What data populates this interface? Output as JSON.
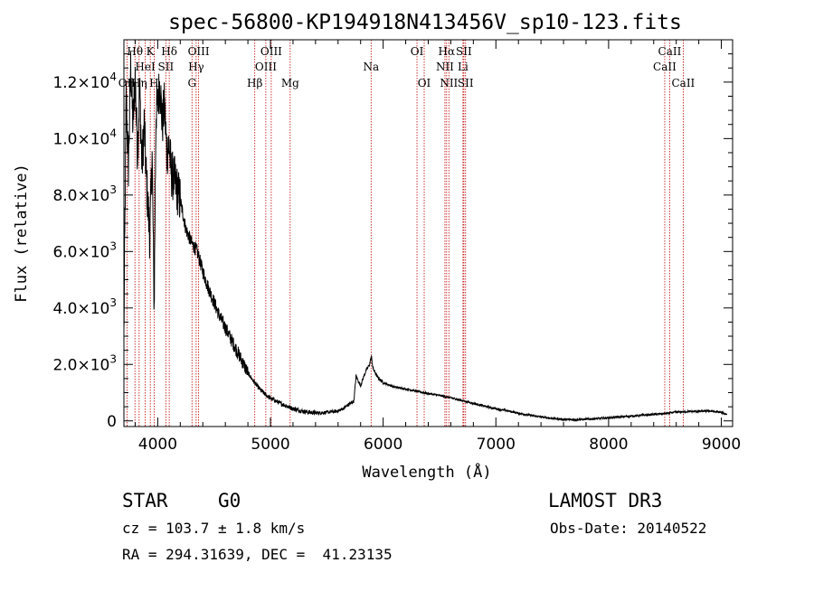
{
  "chart_data": {
    "type": "line",
    "title": "spec-56800-KP194918N413456V_sp10-123.fits",
    "xlabel": "Wavelength (Å)",
    "ylabel": "Flux (relative)",
    "xlim": [
      3700,
      9100
    ],
    "ylim": [
      -200,
      13500
    ],
    "x_ticks": [
      {
        "value": 4000,
        "label": "4000"
      },
      {
        "value": 5000,
        "label": "5000"
      },
      {
        "value": 6000,
        "label": "6000"
      },
      {
        "value": 7000,
        "label": "7000"
      },
      {
        "value": 8000,
        "label": "8000"
      },
      {
        "value": 9000,
        "label": "9000"
      }
    ],
    "y_ticks": [
      {
        "value": 0,
        "mantissa": "0",
        "exponent": ""
      },
      {
        "value": 2000,
        "mantissa": "2.0×10",
        "exponent": "3"
      },
      {
        "value": 4000,
        "mantissa": "4.0×10",
        "exponent": "3"
      },
      {
        "value": 6000,
        "mantissa": "6.0×10",
        "exponent": "3"
      },
      {
        "value": 8000,
        "mantissa": "8.0×10",
        "exponent": "3"
      },
      {
        "value": 10000,
        "mantissa": "1.0×10",
        "exponent": "4"
      },
      {
        "value": 12000,
        "mantissa": "1.2×10",
        "exponent": "4"
      }
    ],
    "spectrum_anchors": [
      [
        3700,
        3000
      ],
      [
        3720,
        11500
      ],
      [
        3740,
        9000
      ],
      [
        3760,
        12500
      ],
      [
        3780,
        10500
      ],
      [
        3800,
        12200
      ],
      [
        3820,
        9500
      ],
      [
        3840,
        11800
      ],
      [
        3860,
        9000
      ],
      [
        3880,
        10500
      ],
      [
        3900,
        8500
      ],
      [
        3930,
        6500
      ],
      [
        3950,
        9500
      ],
      [
        3968,
        4000
      ],
      [
        3985,
        11000
      ],
      [
        4000,
        11200
      ],
      [
        4020,
        12000
      ],
      [
        4040,
        10500
      ],
      [
        4060,
        11200
      ],
      [
        4080,
        9500
      ],
      [
        4100,
        9800
      ],
      [
        4120,
        8800
      ],
      [
        4150,
        8500
      ],
      [
        4200,
        7800
      ],
      [
        4250,
        6800
      ],
      [
        4300,
        6300
      ],
      [
        4350,
        6000
      ],
      [
        4400,
        5300
      ],
      [
        4450,
        4700
      ],
      [
        4500,
        4200
      ],
      [
        4550,
        3700
      ],
      [
        4600,
        3300
      ],
      [
        4650,
        2900
      ],
      [
        4700,
        2500
      ],
      [
        4750,
        2100
      ],
      [
        4800,
        1700
      ],
      [
        4850,
        1400
      ],
      [
        4900,
        1150
      ],
      [
        4950,
        950
      ],
      [
        5000,
        800
      ],
      [
        5100,
        600
      ],
      [
        5200,
        430
      ],
      [
        5300,
        330
      ],
      [
        5400,
        280
      ],
      [
        5500,
        300
      ],
      [
        5600,
        350
      ],
      [
        5650,
        450
      ],
      [
        5700,
        600
      ],
      [
        5740,
        700
      ],
      [
        5760,
        1600
      ],
      [
        5780,
        1400
      ],
      [
        5800,
        1250
      ],
      [
        5830,
        1600
      ],
      [
        5850,
        1800
      ],
      [
        5880,
        2000
      ],
      [
        5895,
        2300
      ],
      [
        5910,
        1850
      ],
      [
        5950,
        1550
      ],
      [
        6000,
        1350
      ],
      [
        6100,
        1200
      ],
      [
        6200,
        1130
      ],
      [
        6300,
        1050
      ],
      [
        6400,
        970
      ],
      [
        6500,
        900
      ],
      [
        6563,
        850
      ],
      [
        6600,
        820
      ],
      [
        6700,
        720
      ],
      [
        6800,
        620
      ],
      [
        6900,
        520
      ],
      [
        7000,
        430
      ],
      [
        7100,
        360
      ],
      [
        7200,
        270
      ],
      [
        7300,
        200
      ],
      [
        7400,
        140
      ],
      [
        7500,
        90
      ],
      [
        7600,
        50
      ],
      [
        7700,
        40
      ],
      [
        7800,
        60
      ],
      [
        7900,
        80
      ],
      [
        8000,
        110
      ],
      [
        8100,
        140
      ],
      [
        8200,
        170
      ],
      [
        8300,
        200
      ],
      [
        8400,
        230
      ],
      [
        8500,
        260
      ],
      [
        8600,
        310
      ],
      [
        8700,
        330
      ],
      [
        8800,
        340
      ],
      [
        8900,
        350
      ],
      [
        9000,
        300
      ],
      [
        9050,
        230
      ]
    ],
    "emission_lines": [
      {
        "label": "OII",
        "wavelength": 3727,
        "row": 3
      },
      {
        "label": "Hθ",
        "wavelength": 3798,
        "row": 1
      },
      {
        "label": "Hη",
        "wavelength": 3835,
        "row": 3
      },
      {
        "label": "HeI",
        "wavelength": 3889,
        "row": 2
      },
      {
        "label": "K",
        "wavelength": 3934,
        "row": 1
      },
      {
        "label": "H",
        "wavelength": 3968,
        "row": 3
      },
      {
        "label": "SII",
        "wavelength": 4072,
        "row": 2
      },
      {
        "label": "Hδ",
        "wavelength": 4102,
        "row": 1
      },
      {
        "label": "G",
        "wavelength": 4304,
        "row": 3
      },
      {
        "label": "Hγ",
        "wavelength": 4341,
        "row": 2
      },
      {
        "label": "OIII",
        "wavelength": 4363,
        "row": 1
      },
      {
        "label": "Hβ",
        "wavelength": 4861,
        "row": 3
      },
      {
        "label": "OIII",
        "wavelength": 4959,
        "row": 2
      },
      {
        "label": "OIII",
        "wavelength": 5007,
        "row": 1
      },
      {
        "label": "Mg",
        "wavelength": 5175,
        "row": 3
      },
      {
        "label": "Na",
        "wavelength": 5893,
        "row": 2
      },
      {
        "label": "OI",
        "wavelength": 6300,
        "row": 1
      },
      {
        "label": "OI",
        "wavelength": 6364,
        "row": 3
      },
      {
        "label": "NII",
        "wavelength": 6548,
        "row": 2
      },
      {
        "label": "Hα",
        "wavelength": 6563,
        "row": 1
      },
      {
        "label": "NII",
        "wavelength": 6583,
        "row": 3
      },
      {
        "label": "Li",
        "wavelength": 6708,
        "row": 2
      },
      {
        "label": "SII",
        "wavelength": 6716,
        "row": 1
      },
      {
        "label": "SII",
        "wavelength": 6731,
        "row": 3
      },
      {
        "label": "CaII",
        "wavelength": 8498,
        "row": 2
      },
      {
        "label": "CaII",
        "wavelength": 8542,
        "row": 1
      },
      {
        "label": "CaII",
        "wavelength": 8662,
        "row": 3
      }
    ]
  },
  "info": {
    "object_class": "STAR",
    "subclass": "G0",
    "survey": "LAMOST DR3",
    "redshift": "cz = 103.7 ± 1.8 km/s",
    "obs_date": "Obs-Date: 20140522",
    "coords": "RA = 294.31639, DEC =  41.23135"
  },
  "colors": {
    "line_marker": "#c00000",
    "spectrum": "#000000",
    "axis": "#000000"
  }
}
